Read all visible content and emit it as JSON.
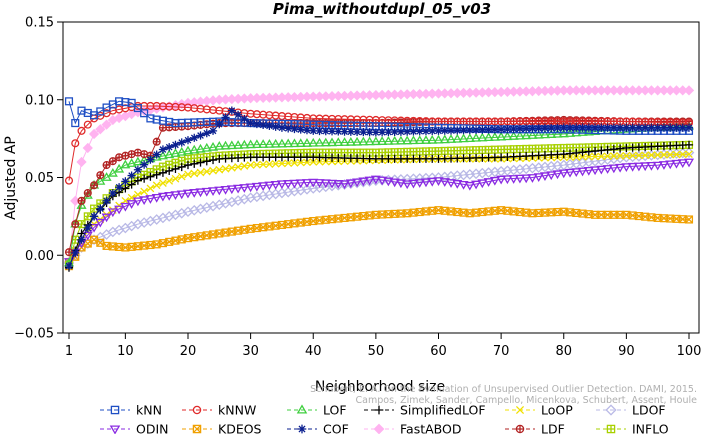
{
  "chart_data": {
    "type": "line",
    "title": "Pima_withoutdupl_05_v03",
    "xlabel": "Neighborhood size",
    "ylabel": "Adjusted AP",
    "xlim": [
      1,
      100
    ],
    "ylim": [
      -0.05,
      0.15
    ],
    "xticks": [
      "1",
      "10",
      "20",
      "30",
      "40",
      "50",
      "60",
      "70",
      "80",
      "90",
      "100"
    ],
    "yticks": [
      "−0.05",
      "0.00",
      "0.05",
      "0.10",
      "0.15"
    ],
    "grid": false,
    "legend_position": "bottom",
    "watermark": [
      "Schubert, E. A. On the Evaluation of Unsupervised Outlier Detection. DAMI, 2015.",
      "Campos, Zimek, Sander, Campello, Micenkova, Schubert, Assent, Houle"
    ],
    "series": [
      {
        "name": "kNN",
        "color": "#1f4fc4",
        "marker": "square",
        "points": [
          [
            1,
            0.099
          ],
          [
            2,
            0.085
          ],
          [
            3,
            0.093
          ],
          [
            5,
            0.09
          ],
          [
            7,
            0.095
          ],
          [
            9,
            0.099
          ],
          [
            11,
            0.098
          ],
          [
            14,
            0.088
          ],
          [
            18,
            0.085
          ],
          [
            25,
            0.086
          ],
          [
            30,
            0.085
          ],
          [
            40,
            0.084
          ],
          [
            50,
            0.083
          ],
          [
            60,
            0.082
          ],
          [
            70,
            0.081
          ],
          [
            80,
            0.081
          ],
          [
            90,
            0.08
          ],
          [
            100,
            0.08
          ]
        ]
      },
      {
        "name": "kNNW",
        "color": "#e02a2a",
        "marker": "circle",
        "points": [
          [
            1,
            0.048
          ],
          [
            2,
            0.072
          ],
          [
            3,
            0.08
          ],
          [
            5,
            0.088
          ],
          [
            8,
            0.093
          ],
          [
            12,
            0.096
          ],
          [
            15,
            0.096
          ],
          [
            20,
            0.095
          ],
          [
            25,
            0.093
          ],
          [
            30,
            0.091
          ],
          [
            40,
            0.088
          ],
          [
            50,
            0.087
          ],
          [
            60,
            0.086
          ],
          [
            70,
            0.086
          ],
          [
            80,
            0.086
          ],
          [
            90,
            0.086
          ],
          [
            100,
            0.085
          ]
        ]
      },
      {
        "name": "LOF",
        "color": "#3fcf3f",
        "marker": "triangle-up",
        "points": [
          [
            1,
            -0.005
          ],
          [
            2,
            0.02
          ],
          [
            3,
            0.032
          ],
          [
            5,
            0.045
          ],
          [
            7,
            0.05
          ],
          [
            10,
            0.058
          ],
          [
            15,
            0.063
          ],
          [
            20,
            0.067
          ],
          [
            25,
            0.07
          ],
          [
            30,
            0.071
          ],
          [
            40,
            0.072
          ],
          [
            50,
            0.073
          ],
          [
            60,
            0.074
          ],
          [
            70,
            0.076
          ],
          [
            80,
            0.078
          ],
          [
            90,
            0.081
          ],
          [
            100,
            0.083
          ]
        ]
      },
      {
        "name": "SimplifiedLOF",
        "color": "#000000",
        "marker": "plus",
        "points": [
          [
            1,
            -0.008
          ],
          [
            2,
            0.003
          ],
          [
            3,
            0.014
          ],
          [
            5,
            0.025
          ],
          [
            8,
            0.038
          ],
          [
            12,
            0.048
          ],
          [
            16,
            0.053
          ],
          [
            20,
            0.058
          ],
          [
            25,
            0.062
          ],
          [
            30,
            0.063
          ],
          [
            40,
            0.063
          ],
          [
            50,
            0.062
          ],
          [
            60,
            0.062
          ],
          [
            70,
            0.063
          ],
          [
            80,
            0.065
          ],
          [
            90,
            0.069
          ],
          [
            100,
            0.071
          ]
        ]
      },
      {
        "name": "LoOP",
        "color": "#f0e000",
        "marker": "cross",
        "points": [
          [
            1,
            -0.004
          ],
          [
            3,
            0.01
          ],
          [
            5,
            0.02
          ],
          [
            10,
            0.035
          ],
          [
            15,
            0.045
          ],
          [
            20,
            0.052
          ],
          [
            25,
            0.055
          ],
          [
            30,
            0.058
          ],
          [
            40,
            0.06
          ],
          [
            50,
            0.061
          ],
          [
            60,
            0.062
          ],
          [
            70,
            0.062
          ],
          [
            80,
            0.063
          ],
          [
            90,
            0.064
          ],
          [
            100,
            0.065
          ]
        ]
      },
      {
        "name": "LDOF",
        "color": "#b9b9e6",
        "marker": "diamond",
        "points": [
          [
            1,
            -0.005
          ],
          [
            3,
            0.005
          ],
          [
            5,
            0.01
          ],
          [
            8,
            0.015
          ],
          [
            12,
            0.02
          ],
          [
            16,
            0.024
          ],
          [
            20,
            0.028
          ],
          [
            30,
            0.037
          ],
          [
            40,
            0.043
          ],
          [
            50,
            0.048
          ],
          [
            60,
            0.05
          ],
          [
            70,
            0.054
          ],
          [
            80,
            0.058
          ],
          [
            90,
            0.063
          ],
          [
            100,
            0.066
          ]
        ]
      },
      {
        "name": "ODIN",
        "color": "#8a2be2",
        "marker": "triangle-down",
        "points": [
          [
            1,
            -0.004
          ],
          [
            3,
            0.008
          ],
          [
            5,
            0.018
          ],
          [
            8,
            0.028
          ],
          [
            12,
            0.035
          ],
          [
            16,
            0.038
          ],
          [
            20,
            0.04
          ],
          [
            25,
            0.042
          ],
          [
            30,
            0.044
          ],
          [
            35,
            0.046
          ],
          [
            40,
            0.047
          ],
          [
            45,
            0.046
          ],
          [
            50,
            0.049
          ],
          [
            55,
            0.046
          ],
          [
            60,
            0.048
          ],
          [
            65,
            0.045
          ],
          [
            70,
            0.049
          ],
          [
            75,
            0.05
          ],
          [
            80,
            0.053
          ],
          [
            85,
            0.055
          ],
          [
            90,
            0.057
          ],
          [
            95,
            0.058
          ],
          [
            100,
            0.06
          ]
        ]
      },
      {
        "name": "KDEOS",
        "color": "#f0a000",
        "marker": "square-x",
        "points": [
          [
            1,
            -0.007
          ],
          [
            3,
            0.005
          ],
          [
            5,
            0.01
          ],
          [
            7,
            0.006
          ],
          [
            10,
            0.005
          ],
          [
            15,
            0.007
          ],
          [
            20,
            0.011
          ],
          [
            25,
            0.014
          ],
          [
            30,
            0.017
          ],
          [
            40,
            0.022
          ],
          [
            50,
            0.026
          ],
          [
            55,
            0.027
          ],
          [
            60,
            0.029
          ],
          [
            65,
            0.027
          ],
          [
            70,
            0.029
          ],
          [
            75,
            0.027
          ],
          [
            80,
            0.028
          ],
          [
            85,
            0.026
          ],
          [
            90,
            0.026
          ],
          [
            95,
            0.024
          ],
          [
            100,
            0.023
          ]
        ]
      },
      {
        "name": "COF",
        "color": "#0a1f8f",
        "marker": "asterisk",
        "points": [
          [
            1,
            -0.007
          ],
          [
            3,
            0.01
          ],
          [
            5,
            0.025
          ],
          [
            8,
            0.04
          ],
          [
            12,
            0.055
          ],
          [
            16,
            0.068
          ],
          [
            20,
            0.074
          ],
          [
            24,
            0.08
          ],
          [
            27,
            0.093
          ],
          [
            30,
            0.085
          ],
          [
            35,
            0.082
          ],
          [
            40,
            0.08
          ],
          [
            50,
            0.079
          ],
          [
            60,
            0.08
          ],
          [
            70,
            0.081
          ],
          [
            80,
            0.082
          ],
          [
            90,
            0.082
          ],
          [
            100,
            0.082
          ]
        ]
      },
      {
        "name": "FastABOD",
        "color": "#ffb3f0",
        "marker": "diamond-filled",
        "points": [
          [
            1,
            -0.004
          ],
          [
            2,
            0.035
          ],
          [
            3,
            0.06
          ],
          [
            5,
            0.078
          ],
          [
            8,
            0.087
          ],
          [
            12,
            0.092
          ],
          [
            16,
            0.095
          ],
          [
            20,
            0.098
          ],
          [
            25,
            0.1
          ],
          [
            30,
            0.101
          ],
          [
            40,
            0.102
          ],
          [
            50,
            0.103
          ],
          [
            60,
            0.104
          ],
          [
            70,
            0.105
          ],
          [
            80,
            0.106
          ],
          [
            90,
            0.106
          ],
          [
            100,
            0.106
          ]
        ]
      },
      {
        "name": "LDF",
        "color": "#b22222",
        "marker": "circle-plus",
        "points": [
          [
            1,
            0.002
          ],
          [
            2,
            0.02
          ],
          [
            3,
            0.035
          ],
          [
            5,
            0.045
          ],
          [
            7,
            0.058
          ],
          [
            9,
            0.063
          ],
          [
            12,
            0.066
          ],
          [
            14,
            0.064
          ],
          [
            16,
            0.082
          ],
          [
            20,
            0.083
          ],
          [
            25,
            0.085
          ],
          [
            30,
            0.085
          ],
          [
            40,
            0.085
          ],
          [
            50,
            0.085
          ],
          [
            60,
            0.086
          ],
          [
            70,
            0.086
          ],
          [
            80,
            0.087
          ],
          [
            90,
            0.086
          ],
          [
            100,
            0.086
          ]
        ]
      },
      {
        "name": "INFLO",
        "color": "#a8d000",
        "marker": "square-plus",
        "points": [
          [
            1,
            -0.006
          ],
          [
            2,
            0.01
          ],
          [
            3,
            0.02
          ],
          [
            5,
            0.03
          ],
          [
            8,
            0.04
          ],
          [
            12,
            0.05
          ],
          [
            16,
            0.057
          ],
          [
            20,
            0.062
          ],
          [
            25,
            0.064
          ],
          [
            30,
            0.065
          ],
          [
            40,
            0.066
          ],
          [
            50,
            0.066
          ],
          [
            60,
            0.067
          ],
          [
            70,
            0.068
          ],
          [
            80,
            0.069
          ],
          [
            90,
            0.07
          ],
          [
            100,
            0.071
          ]
        ]
      }
    ]
  }
}
